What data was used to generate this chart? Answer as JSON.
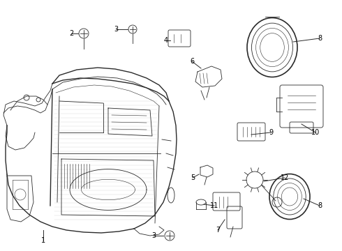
{
  "bg_color": "#ffffff",
  "line_color": "#2a2a2a",
  "label_color": "#000000",
  "figw": 4.9,
  "figh": 3.6,
  "dpi": 100
}
